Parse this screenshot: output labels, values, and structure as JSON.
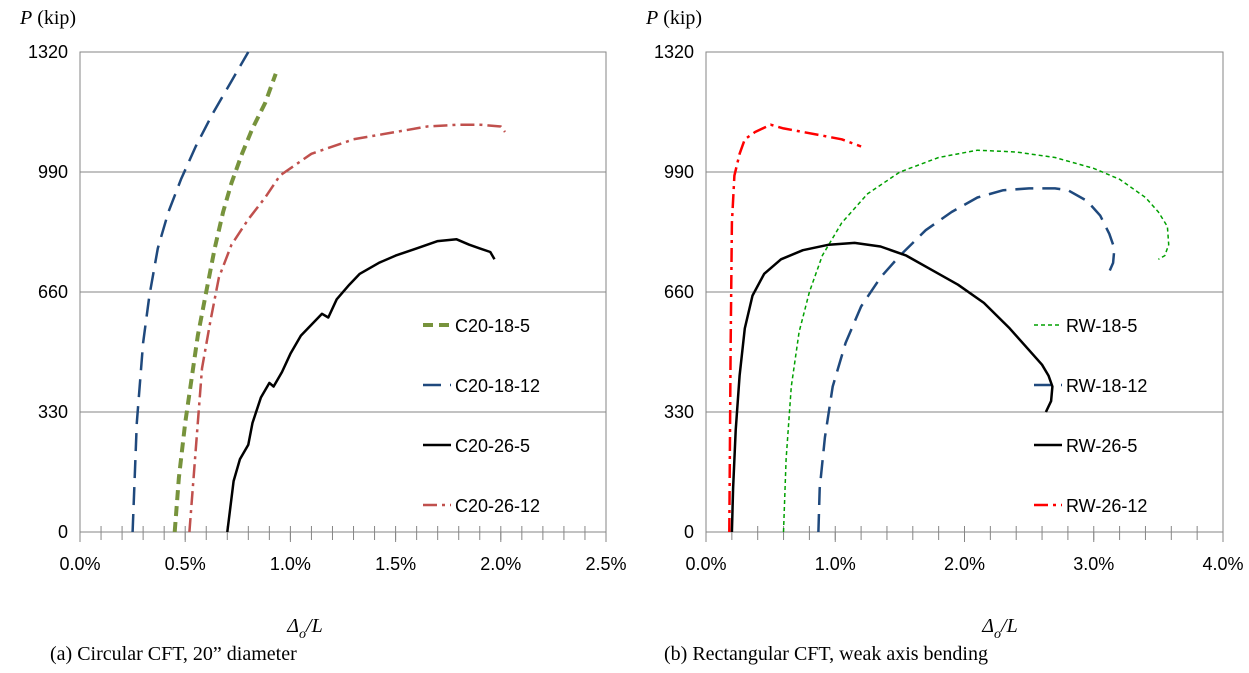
{
  "chart_data": [
    {
      "type": "line",
      "caption": "(a) Circular CFT, 20” diameter",
      "ylabel_var": "P",
      "ylabel_unit": " (kip)",
      "xlabel_main": "Δ",
      "xlabel_sub": "o",
      "xlabel_tail": "/L",
      "xlim": [
        0,
        2.5
      ],
      "ylim": [
        0,
        1320
      ],
      "xticks": [
        0,
        0.5,
        1.0,
        1.5,
        2.0,
        2.5
      ],
      "xtick_labels": [
        "0.0%",
        "0.5%",
        "1.0%",
        "1.5%",
        "2.0%",
        "2.5%"
      ],
      "yticks": [
        0,
        330,
        660,
        990,
        1320
      ],
      "ytick_labels": [
        "0",
        "330",
        "660",
        "990",
        "1320"
      ],
      "grid": "horizontal",
      "legend_position": "right",
      "series": [
        {
          "name": "C20-18-5",
          "color": "#77933c",
          "dash": "10,6",
          "width": 4,
          "x": [
            0.45,
            0.47,
            0.5,
            0.53,
            0.56,
            0.6,
            0.64,
            0.68,
            0.72,
            0.77,
            0.82,
            0.88,
            0.93
          ],
          "y": [
            0,
            150,
            300,
            420,
            540,
            660,
            780,
            880,
            960,
            1040,
            1110,
            1180,
            1260
          ]
        },
        {
          "name": "C20-18-12",
          "color": "#1f497d",
          "dash": "18,9",
          "width": 2.5,
          "x": [
            0.25,
            0.27,
            0.3,
            0.33,
            0.37,
            0.42,
            0.48,
            0.55,
            0.63,
            0.72,
            0.8
          ],
          "y": [
            0,
            300,
            520,
            650,
            780,
            880,
            970,
            1060,
            1150,
            1240,
            1320
          ]
        },
        {
          "name": "C20-26-5",
          "color": "#000000",
          "dash": "",
          "width": 2.5,
          "x": [
            0.7,
            0.73,
            0.76,
            0.8,
            0.82,
            0.86,
            0.9,
            0.92,
            0.96,
            1.0,
            1.05,
            1.1,
            1.15,
            1.18,
            1.22,
            1.28,
            1.33,
            1.42,
            1.5,
            1.6,
            1.7,
            1.79,
            1.85,
            1.9,
            1.95,
            1.97
          ],
          "y": [
            0,
            140,
            200,
            240,
            300,
            370,
            410,
            400,
            440,
            490,
            540,
            570,
            600,
            590,
            640,
            680,
            710,
            740,
            760,
            780,
            800,
            805,
            790,
            780,
            770,
            750
          ]
        },
        {
          "name": "C20-26-12",
          "color": "#c0504d",
          "dash": "14,5,3,5",
          "width": 2.5,
          "x": [
            0.52,
            0.54,
            0.56,
            0.58,
            0.62,
            0.66,
            0.72,
            0.8,
            0.88,
            0.95,
            1.1,
            1.3,
            1.5,
            1.65,
            1.8,
            1.9,
            2.0,
            2.02
          ],
          "y": [
            0,
            150,
            300,
            450,
            580,
            700,
            790,
            860,
            920,
            980,
            1040,
            1080,
            1100,
            1115,
            1120,
            1120,
            1115,
            1100
          ]
        }
      ]
    },
    {
      "type": "line",
      "caption": "(b) Rectangular CFT, weak axis bending",
      "ylabel_var": "P",
      "ylabel_unit": " (kip)",
      "xlabel_main": "Δ",
      "xlabel_sub": "o",
      "xlabel_tail": "/L",
      "xlim": [
        0,
        4.0
      ],
      "ylim": [
        0,
        1320
      ],
      "xticks": [
        0,
        1.0,
        2.0,
        3.0,
        4.0
      ],
      "xtick_labels": [
        "0.0%",
        "1.0%",
        "2.0%",
        "3.0%",
        "4.0%"
      ],
      "yticks": [
        0,
        330,
        660,
        990,
        1320
      ],
      "ytick_labels": [
        "0",
        "330",
        "660",
        "990",
        "1320"
      ],
      "grid": "horizontal",
      "legend_position": "right",
      "series": [
        {
          "name": "RW-18-5",
          "color": "#00a000",
          "dash": "4,3",
          "width": 1.5,
          "x": [
            0.6,
            0.62,
            0.66,
            0.72,
            0.8,
            0.9,
            1.05,
            1.25,
            1.5,
            1.8,
            2.1,
            2.4,
            2.7,
            3.0,
            3.2,
            3.4,
            3.5,
            3.57,
            3.58,
            3.55,
            3.5
          ],
          "y": [
            0,
            200,
            400,
            550,
            660,
            760,
            850,
            930,
            990,
            1030,
            1050,
            1045,
            1030,
            1000,
            970,
            920,
            880,
            840,
            790,
            760,
            750
          ]
        },
        {
          "name": "RW-18-12",
          "color": "#1f497d",
          "dash": "18,9",
          "width": 2.5,
          "x": [
            0.87,
            0.88,
            0.92,
            0.98,
            1.08,
            1.2,
            1.35,
            1.5,
            1.7,
            1.9,
            2.1,
            2.3,
            2.5,
            2.7,
            2.8,
            2.95,
            3.05,
            3.12,
            3.16,
            3.15,
            3.1
          ],
          "y": [
            0,
            120,
            260,
            400,
            520,
            620,
            700,
            760,
            830,
            880,
            920,
            940,
            945,
            945,
            940,
            910,
            870,
            820,
            780,
            740,
            700
          ]
        },
        {
          "name": "RW-26-5",
          "color": "#000000",
          "dash": "",
          "width": 2.5,
          "x": [
            0.2,
            0.21,
            0.23,
            0.26,
            0.3,
            0.36,
            0.45,
            0.58,
            0.75,
            0.95,
            1.15,
            1.35,
            1.55,
            1.75,
            1.95,
            2.15,
            2.35,
            2.5,
            2.6,
            2.65,
            2.68,
            2.67,
            2.63
          ],
          "y": [
            0,
            120,
            280,
            430,
            560,
            650,
            710,
            750,
            775,
            790,
            795,
            785,
            760,
            720,
            680,
            630,
            560,
            500,
            460,
            430,
            400,
            360,
            330
          ]
        },
        {
          "name": "RW-26-12",
          "color": "#ff0000",
          "dash": "14,5,3,5",
          "width": 2.5,
          "x": [
            0.18,
            0.19,
            0.2,
            0.22,
            0.26,
            0.3,
            0.38,
            0.5,
            0.6,
            0.75,
            0.9,
            1.05,
            1.2
          ],
          "y": [
            0,
            500,
            850,
            980,
            1040,
            1080,
            1100,
            1120,
            1110,
            1100,
            1090,
            1080,
            1060
          ]
        }
      ]
    }
  ]
}
